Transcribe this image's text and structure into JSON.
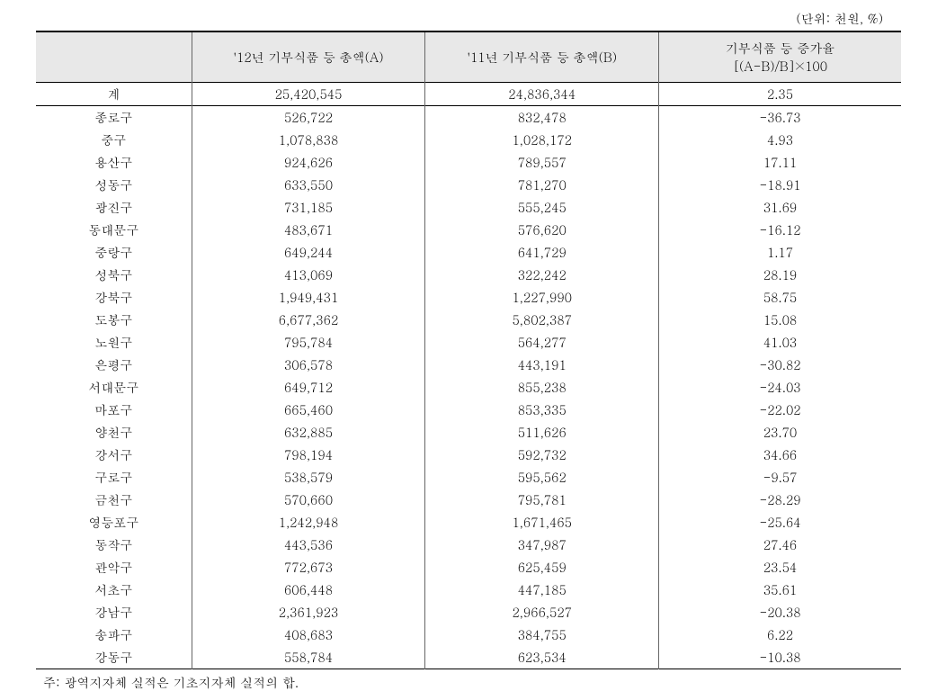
{
  "unit_label": "(단위: 천원, %)",
  "columns": {
    "label": "",
    "col_a": "'12년 기부식품 등 총액(A)",
    "col_b": "'11년 기부식품 등 총액(B)",
    "col_rate_line1": "기부식품 등 증가율",
    "col_rate_line2": "[(A-B)/B]×100"
  },
  "rows": [
    {
      "label": "계",
      "a": "25,420,545",
      "b": "24,836,344",
      "rate": "2.35"
    },
    {
      "label": "종로구",
      "a": "526,722",
      "b": "832,478",
      "rate": "-36.73"
    },
    {
      "label": "중구",
      "a": "1,078,838",
      "b": "1,028,172",
      "rate": "4.93"
    },
    {
      "label": "용산구",
      "a": "924,626",
      "b": "789,557",
      "rate": "17.11"
    },
    {
      "label": "성동구",
      "a": "633,550",
      "b": "781,270",
      "rate": "-18.91"
    },
    {
      "label": "광진구",
      "a": "731,185",
      "b": "555,245",
      "rate": "31.69"
    },
    {
      "label": "동대문구",
      "a": "483,671",
      "b": "576,620",
      "rate": "-16.12"
    },
    {
      "label": "중랑구",
      "a": "649,244",
      "b": "641,729",
      "rate": "1.17"
    },
    {
      "label": "성북구",
      "a": "413,069",
      "b": "322,242",
      "rate": "28.19"
    },
    {
      "label": "강북구",
      "a": "1,949,431",
      "b": "1,227,990",
      "rate": "58.75"
    },
    {
      "label": "도봉구",
      "a": "6,677,362",
      "b": "5,802,387",
      "rate": "15.08"
    },
    {
      "label": "노원구",
      "a": "795,784",
      "b": "564,277",
      "rate": "41.03"
    },
    {
      "label": "은평구",
      "a": "306,578",
      "b": "443,191",
      "rate": "-30.82"
    },
    {
      "label": "서대문구",
      "a": "649,712",
      "b": "855,238",
      "rate": "-24.03"
    },
    {
      "label": "마포구",
      "a": "665,460",
      "b": "853,335",
      "rate": "-22.02"
    },
    {
      "label": "양천구",
      "a": "632,885",
      "b": "511,626",
      "rate": "23.70"
    },
    {
      "label": "강서구",
      "a": "798,194",
      "b": "592,732",
      "rate": "34.66"
    },
    {
      "label": "구로구",
      "a": "538,579",
      "b": "595,562",
      "rate": "-9.57"
    },
    {
      "label": "금천구",
      "a": "570,660",
      "b": "795,781",
      "rate": "-28.29"
    },
    {
      "label": "영등포구",
      "a": "1,242,948",
      "b": "1,671,465",
      "rate": "-25.64"
    },
    {
      "label": "동작구",
      "a": "443,536",
      "b": "347,987",
      "rate": "27.46"
    },
    {
      "label": "관악구",
      "a": "772,673",
      "b": "625,459",
      "rate": "23.54"
    },
    {
      "label": "서초구",
      "a": "606,448",
      "b": "447,185",
      "rate": "35.61"
    },
    {
      "label": "강남구",
      "a": "2,361,923",
      "b": "2,966,527",
      "rate": "-20.38"
    },
    {
      "label": "송파구",
      "a": "408,683",
      "b": "384,755",
      "rate": "6.22"
    },
    {
      "label": "강동구",
      "a": "558,784",
      "b": "623,534",
      "rate": "-10.38"
    }
  ],
  "footnote": "주: 광역지자체 실적은 기초지자체 실적의 합.",
  "styling": {
    "background_color": "#ffffff",
    "header_bg": "#e8e8e8",
    "text_color": "#000000",
    "border_color": "#000000",
    "inner_border_color": "#666666",
    "font_family": "Batang, 바탕, serif",
    "font_size_body": 14,
    "font_size_unit": 14,
    "font_size_footnote": 14,
    "top_border_width": 2,
    "header_border_width": 1.5,
    "bottom_border_width": 1.5
  }
}
